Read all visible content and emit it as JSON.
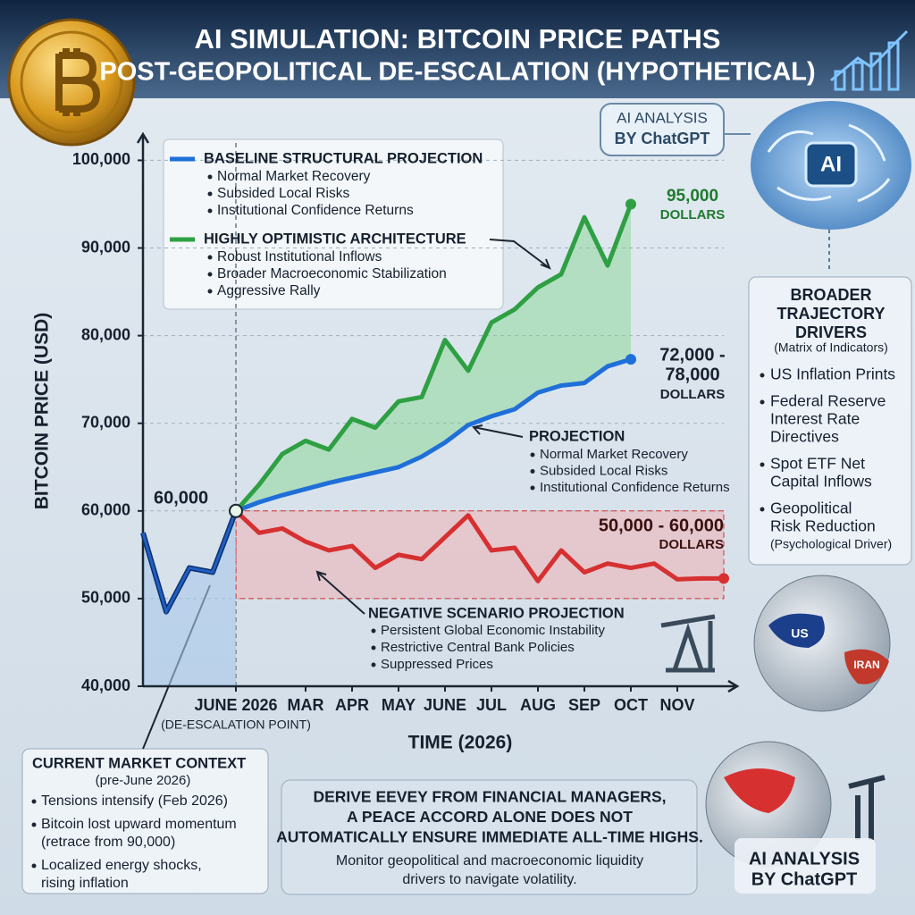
{
  "chart_data": {
    "type": "line",
    "title": "AI SIMULATION: BITCOIN PRICE PATHS",
    "subtitle": "POST-GEOPOLITICAL DE-ESCALATION (HYPOTHETICAL)",
    "y_label": "BITCOIN PRICE (USD)",
    "x_label": "TIME (2026)",
    "event_label": "(DE-ESCALATION POINT)",
    "start_label": "60,000",
    "categories": [
      null,
      null,
      null,
      null,
      "JUNE 2026",
      null,
      null,
      "MAR",
      null,
      "APR",
      null,
      "MAY",
      null,
      "JUNE",
      null,
      "JUL",
      null,
      "AUG",
      null,
      "SEP",
      null,
      "OCT",
      null,
      "NOV",
      null,
      null
    ],
    "ylim": [
      40000,
      103000
    ],
    "yticks": [
      {
        "value": 40000,
        "label": "40,000"
      },
      {
        "value": 50000,
        "label": "50,000"
      },
      {
        "value": 60000,
        "label": "60,000"
      },
      {
        "value": 70000,
        "label": "70,000"
      },
      {
        "value": 80000,
        "label": "80,000"
      },
      {
        "value": 90000,
        "label": "90,000"
      },
      {
        "value": 100000,
        "label": "100,000"
      }
    ],
    "grid": true,
    "series": [
      {
        "color": "#1f5fc4",
        "values": [
          57500,
          48500,
          53500,
          53000,
          60000,
          null,
          null,
          null,
          null,
          null,
          null,
          null,
          null,
          null,
          null,
          null,
          null,
          null,
          null,
          null,
          null,
          null,
          null,
          null,
          null,
          null
        ]
      },
      {
        "name": "BASELINE STRUCTURAL PROJECTION",
        "color": "#1f6fd8",
        "bullets": [
          "Normal Market Recovery",
          "Subsided Local Risks",
          "Institutional Confidence Returns"
        ],
        "end_label": [
          "72,000 -",
          "78,000",
          "DOLLARS"
        ],
        "values": [
          null,
          null,
          null,
          null,
          60000,
          61000,
          61800,
          62500,
          63200,
          63800,
          64400,
          65000,
          66200,
          67800,
          69800,
          70800,
          71600,
          73500,
          74300,
          74600,
          76500,
          77300,
          null,
          null,
          null,
          null
        ]
      },
      {
        "name": "HIGHLY OPTIMISTIC ARCHITECTURE",
        "color": "#2ea043",
        "bullets": [
          "Robust Institutional Inflows",
          "Broader Macroeconomic Stabilization",
          "Aggressive Rally"
        ],
        "end_label": [
          "95,000",
          "DOLLARS"
        ],
        "values": [
          null,
          null,
          null,
          null,
          60000,
          63000,
          66500,
          68000,
          67000,
          70500,
          69500,
          72500,
          73000,
          79500,
          76000,
          81500,
          83000,
          85500,
          87000,
          93500,
          88000,
          95000,
          null,
          null,
          null,
          null
        ]
      },
      {
        "name": "NEGATIVE SCENARIO PROJECTION",
        "color": "#d63031",
        "bullets": [
          "Persistent Global Economic Instability",
          "Restrictive Central Bank Policies",
          "Suppressed Prices"
        ],
        "end_label": [
          "50,000 - 60,000",
          "DOLLARS"
        ],
        "range": [
          50000,
          60000
        ],
        "values": [
          null,
          null,
          null,
          null,
          60000,
          57500,
          58000,
          56500,
          55500,
          56000,
          53500,
          55000,
          54500,
          57000,
          59500,
          55500,
          55800,
          52000,
          55500,
          53000,
          54000,
          53500,
          54000,
          52200,
          52300,
          52300
        ]
      }
    ],
    "annotation": {
      "title": "PROJECTION",
      "bullets": [
        "Normal Market Recovery",
        "Subsided Local Risks",
        "Institutional Confidence Returns"
      ]
    }
  },
  "badge_top": [
    "AI ANALYSIS",
    "BY ChatGPT"
  ],
  "brain_label": "AI",
  "drivers_panel": {
    "title": [
      "BROADER",
      "TRAJECTORY",
      "DRIVERS"
    ],
    "subtitle": "(Matrix of Indicators)",
    "items": [
      [
        "US Inflation Prints"
      ],
      [
        "Federal Reserve",
        "Interest Rate",
        "Directives"
      ],
      [
        "Spot ETF Net",
        "Capital Inflows"
      ],
      [
        "Geopolitical",
        "Risk Reduction",
        "(Psychological Driver)"
      ]
    ]
  },
  "context_panel": {
    "title": "CURRENT MARKET CONTEXT",
    "subtitle": "(pre-June 2026)",
    "items": [
      [
        "Tensions intensify (Feb 2026)"
      ],
      [
        "Bitcoin lost upward momentum",
        "(retrace from 90,000)"
      ],
      [
        "Localized energy shocks,",
        "rising inflation"
      ]
    ]
  },
  "message": {
    "headline": [
      "DERIVE EEVEY FROM FINANCIAL MANAGERS,",
      "A PEACE ACCORD ALONE DOES NOT",
      "AUTOMATICALLY ENSURE IMMEDIATE ALL-TIME HIGHS."
    ],
    "body": [
      "Monitor geopolitical and macroeconomic liquidity",
      "drivers to navigate volatility."
    ]
  },
  "map_labels": [
    "US",
    "IRAN"
  ],
  "badge_bottom": [
    "AI ANALYSIS",
    "BY ChatGPT"
  ]
}
